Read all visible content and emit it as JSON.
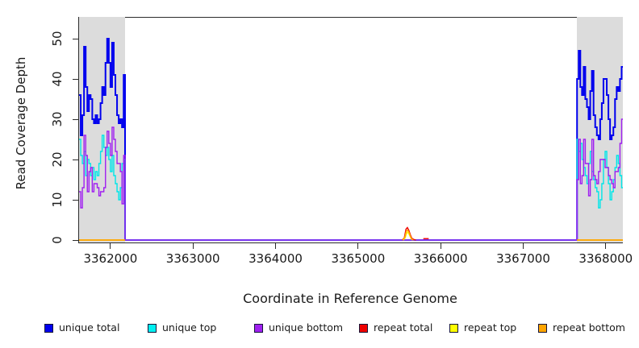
{
  "chart_data": {
    "type": "line",
    "title": "",
    "xlabel": "Coordinate in Reference Genome",
    "ylabel": "Read Coverage Depth",
    "xlim": [
      3361620,
      3368207
    ],
    "ylim": [
      -0.6,
      55.4
    ],
    "x_ticks": [
      3362000,
      3363000,
      3364000,
      3365000,
      3366000,
      3367000,
      3368000
    ],
    "y_ticks": [
      0,
      10,
      20,
      30,
      40,
      50
    ],
    "grid": false,
    "legend_position": "bottom",
    "background_color": "#ffffff",
    "axis_color": "#2b2b2b",
    "highlight_color": "#dcdcdc",
    "highlight_regions": [
      {
        "x0": 3361620,
        "x1": 3362177
      },
      {
        "x0": 3367650,
        "x1": 3368207
      }
    ],
    "series": [
      {
        "name": "unique total",
        "color": "#0000ee",
        "width": 2,
        "paths": [
          {
            "mode": "step",
            "chunks": [
              {
                "x0": 3361620,
                "dx": 20,
                "v": [
                  36,
                  26,
                  31,
                  48,
                  38,
                  32,
                  36,
                  35,
                  30,
                  29,
                  31,
                  29,
                  30,
                  34,
                  38,
                  36,
                  44,
                  50,
                  44,
                  38,
                  49,
                  41,
                  36,
                  31,
                  29,
                  30,
                  28,
                  41
                ]
              },
              {
                "pts": [
                  [
                    3362177,
                    0
                  ]
                ]
              },
              {
                "x0": 3367652,
                "dx": 20,
                "v": [
                  40,
                  47,
                  38,
                  36,
                  43,
                  35,
                  33,
                  30,
                  37,
                  42,
                  31,
                  28,
                  26,
                  25,
                  30,
                  34,
                  40,
                  40,
                  36,
                  30,
                  25,
                  26,
                  28,
                  35,
                  38,
                  37,
                  40,
                  43
                ]
              },
              {
                "pts": [
                  [
                    3368207,
                    43
                  ]
                ]
              }
            ]
          }
        ]
      },
      {
        "name": "unique top",
        "color": "#00e6e8",
        "width": 1.4,
        "paths": [
          {
            "mode": "step",
            "chunks": [
              {
                "x0": 3361620,
                "dx": 20,
                "v": [
                  25,
                  21,
                  19,
                  22,
                  16,
                  20,
                  19,
                  16,
                  18,
                  15,
                  17,
                  16,
                  19,
                  22,
                  26,
                  23,
                  21,
                  23,
                  20,
                  17,
                  21,
                  16,
                  14,
                  12,
                  10,
                  13,
                  19,
                  20
                ]
              },
              {
                "pts": [
                  [
                    3362177,
                    0
                  ]
                ]
              },
              {
                "x0": 3367652,
                "dx": 20,
                "v": [
                  25,
                  22,
                  24,
                  20,
                  18,
                  16,
                  14,
                  19,
                  22,
                  17,
                  15,
                  13,
                  12,
                  8,
                  10,
                  14,
                  20,
                  22,
                  18,
                  14,
                  10,
                  12,
                  15,
                  18,
                  21,
                  19,
                  16,
                  13
                ]
              },
              {
                "pts": [
                  [
                    3368207,
                    13
                  ]
                ]
              }
            ]
          }
        ]
      },
      {
        "name": "unique bottom",
        "color": "#a020f0",
        "width": 1.4,
        "paths": [
          {
            "mode": "step",
            "chunks": [
              {
                "x0": 3361620,
                "dx": 20,
                "v": [
                  12,
                  8,
                  13,
                  26,
                  21,
                  12,
                  17,
                  18,
                  12,
                  14,
                  14,
                  13,
                  11,
                  12,
                  12,
                  13,
                  23,
                  27,
                  24,
                  21,
                  28,
                  25,
                  22,
                  19,
                  19,
                  17,
                  9,
                  21
                ]
              },
              {
                "pts": [
                  [
                    3362177,
                    0
                  ]
                ]
              },
              {
                "x0": 3367652,
                "dx": 20,
                "v": [
                  15,
                  25,
                  14,
                  16,
                  25,
                  19,
                  19,
                  11,
                  15,
                  25,
                  16,
                  15,
                  14,
                  17,
                  20,
                  20,
                  20,
                  18,
                  18,
                  16,
                  15,
                  14,
                  13,
                  17,
                  17,
                  18,
                  24,
                  30
                ]
              },
              {
                "pts": [
                  [
                    3368207,
                    30
                  ]
                ]
              }
            ]
          }
        ]
      },
      {
        "name": "repeat total",
        "color": "#ee0000",
        "width": 1.4,
        "paths": [
          {
            "mode": "step",
            "chunks": [
              {
                "pts": [
                  [
                    3361620,
                    0
                  ],
                  [
                    3362177,
                    0
                  ]
                ]
              }
            ]
          },
          {
            "mode": "line",
            "chunks": [
              {
                "pts": [
                  [
                    3365535,
                    0
                  ],
                  [
                    3365560,
                    0.6
                  ],
                  [
                    3365580,
                    2.7
                  ],
                  [
                    3365597,
                    3.1
                  ],
                  [
                    3365615,
                    2.4
                  ],
                  [
                    3365635,
                    1.2
                  ],
                  [
                    3365652,
                    0.4
                  ],
                  [
                    3365675,
                    0.15
                  ],
                  [
                    3365700,
                    0
                  ]
                ]
              }
            ]
          },
          {
            "mode": "line",
            "chunks": [
              {
                "pts": [
                  [
                    3365790,
                    0.35
                  ],
                  [
                    3365855,
                    0.35
                  ]
                ]
              }
            ]
          },
          {
            "mode": "step",
            "chunks": [
              {
                "pts": [
                  [
                    3367652,
                    0
                  ],
                  [
                    3368207,
                    0
                  ]
                ]
              }
            ]
          }
        ]
      },
      {
        "name": "repeat top",
        "color": "#ffff00",
        "width": 1.4,
        "paths": [
          {
            "mode": "step",
            "chunks": [
              {
                "pts": [
                  [
                    3361620,
                    0
                  ],
                  [
                    3362177,
                    0
                  ]
                ]
              }
            ]
          },
          {
            "mode": "line",
            "chunks": [
              {
                "pts": [
                  [
                    3365545,
                    0
                  ],
                  [
                    3365570,
                    0.5
                  ],
                  [
                    3365588,
                    1.7
                  ],
                  [
                    3365602,
                    2.0
                  ],
                  [
                    3365618,
                    1.4
                  ],
                  [
                    3365636,
                    0.6
                  ],
                  [
                    3365655,
                    0
                  ]
                ]
              }
            ]
          },
          {
            "mode": "step",
            "chunks": [
              {
                "pts": [
                  [
                    3367652,
                    0
                  ],
                  [
                    3368207,
                    0
                  ]
                ]
              }
            ]
          }
        ]
      },
      {
        "name": "repeat bottom",
        "color": "#ffa500",
        "width": 1.5,
        "paths": [
          {
            "mode": "step",
            "chunks": [
              {
                "pts": [
                  [
                    3361620,
                    0
                  ],
                  [
                    3362177,
                    0
                  ]
                ]
              }
            ]
          },
          {
            "mode": "line",
            "chunks": [
              {
                "pts": [
                  [
                    3365540,
                    0
                  ],
                  [
                    3365566,
                    0.7
                  ],
                  [
                    3365584,
                    2.2
                  ],
                  [
                    3365600,
                    2.5
                  ],
                  [
                    3365617,
                    1.9
                  ],
                  [
                    3365634,
                    0.9
                  ],
                  [
                    3365650,
                    0.2
                  ],
                  [
                    3365670,
                    0
                  ]
                ]
              }
            ]
          },
          {
            "mode": "step",
            "chunks": [
              {
                "pts": [
                  [
                    3367652,
                    0
                  ],
                  [
                    3368207,
                    0
                  ]
                ]
              }
            ]
          }
        ]
      }
    ],
    "legend": [
      {
        "label": "unique total",
        "color": "#0000ee"
      },
      {
        "label": "unique top",
        "color": "#00f0f0"
      },
      {
        "label": "unique bottom",
        "color": "#a020f0"
      },
      {
        "label": "repeat total",
        "color": "#ee0000"
      },
      {
        "label": "repeat top",
        "color": "#ffff00"
      },
      {
        "label": "repeat bottom",
        "color": "#ffa500"
      }
    ]
  }
}
